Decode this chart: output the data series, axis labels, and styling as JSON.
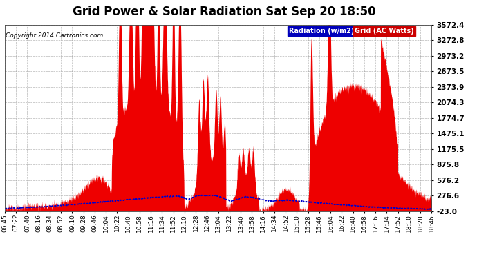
{
  "title": "Grid Power & Solar Radiation Sat Sep 20 18:50",
  "copyright": "Copyright 2014 Cartronics.com",
  "yticks": [
    -23.0,
    276.6,
    576.2,
    875.8,
    1175.5,
    1475.1,
    1774.7,
    2074.3,
    2373.9,
    2673.5,
    2973.2,
    3272.8,
    3572.4
  ],
  "ylim": [
    -23.0,
    3572.4
  ],
  "legend_radiation_label": "Radiation (w/m2)",
  "legend_grid_label": "Grid (AC Watts)",
  "legend_radiation_bg": "#0000bb",
  "legend_grid_bg": "#cc0000",
  "bg_color": "#ffffff",
  "plot_bg_color": "#ffffff",
  "title_fontsize": 12,
  "red_color": "#ee0000",
  "blue_color": "#0000cc",
  "x_label_fontsize": 6.5,
  "y_label_fontsize": 7.5,
  "xtick_labels": [
    "06:45",
    "07:22",
    "07:40",
    "08:16",
    "08:34",
    "08:52",
    "09:10",
    "09:28",
    "09:46",
    "10:04",
    "10:22",
    "10:40",
    "10:58",
    "11:16",
    "11:34",
    "11:52",
    "12:10",
    "12:28",
    "12:46",
    "13:04",
    "13:22",
    "13:40",
    "13:58",
    "14:16",
    "14:34",
    "14:52",
    "15:10",
    "15:28",
    "15:46",
    "16:04",
    "16:22",
    "16:40",
    "16:58",
    "17:16",
    "17:34",
    "17:52",
    "18:10",
    "18:28",
    "18:46"
  ]
}
